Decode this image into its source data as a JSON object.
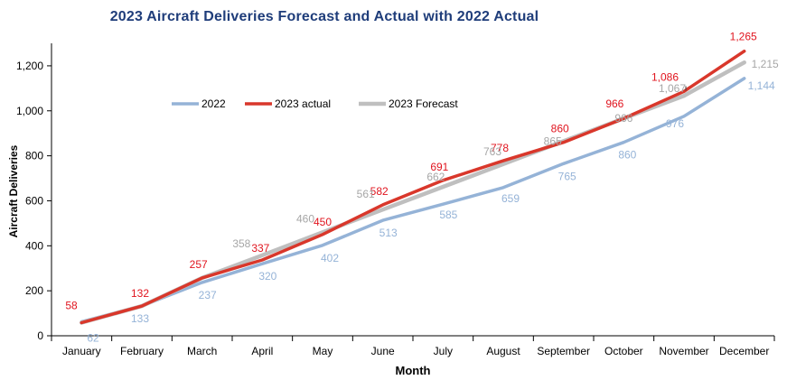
{
  "chart_data": {
    "type": "line",
    "title": "2023 Aircraft Deliveries Forecast and Actual with 2022 Actual",
    "xlabel": "Month",
    "ylabel": "Aircraft Deliveries",
    "ylim": [
      0,
      1300
    ],
    "yticks": [
      0,
      200,
      400,
      600,
      800,
      1000,
      1200
    ],
    "ytick_labels": [
      "0",
      "200",
      "400",
      "600",
      "800",
      "1,000",
      "1,200"
    ],
    "grid": false,
    "legend_position": "top-left inside",
    "categories": [
      "January",
      "February",
      "March",
      "April",
      "May",
      "June",
      "July",
      "August",
      "September",
      "October",
      "November",
      "December"
    ],
    "series": [
      {
        "name": "2022",
        "color": "#95b3d7",
        "label_color": "#95b3d7",
        "values": [
          62,
          133,
          237,
          320,
          402,
          513,
          585,
          659,
          765,
          860,
          976,
          1144
        ],
        "labels": [
          "62",
          "133",
          "237",
          "320",
          "402",
          "513",
          "585",
          "659",
          "765",
          "860",
          "976",
          "1,144"
        ]
      },
      {
        "name": "2023 actual",
        "color": "#d9372b",
        "label_color": "#e0141e",
        "values": [
          58,
          132,
          257,
          337,
          450,
          582,
          691,
          778,
          860,
          966,
          1086,
          1265
        ],
        "labels": [
          "58",
          "132",
          "257",
          "337",
          "450",
          "582",
          "691",
          "778",
          "860",
          "966",
          "1,086",
          "1,265"
        ]
      },
      {
        "name": "2023 Forecast",
        "color": "#bfbfbf",
        "label_color": "#a6a6a6",
        "values": [
          58,
          132,
          257,
          358,
          460,
          561,
          662,
          763,
          865,
          966,
          1067,
          1215
        ],
        "labels": [
          "",
          "",
          "",
          "358",
          "460",
          "561",
          "662",
          "763",
          "865",
          "966",
          "1,067",
          "1,215"
        ]
      }
    ]
  }
}
